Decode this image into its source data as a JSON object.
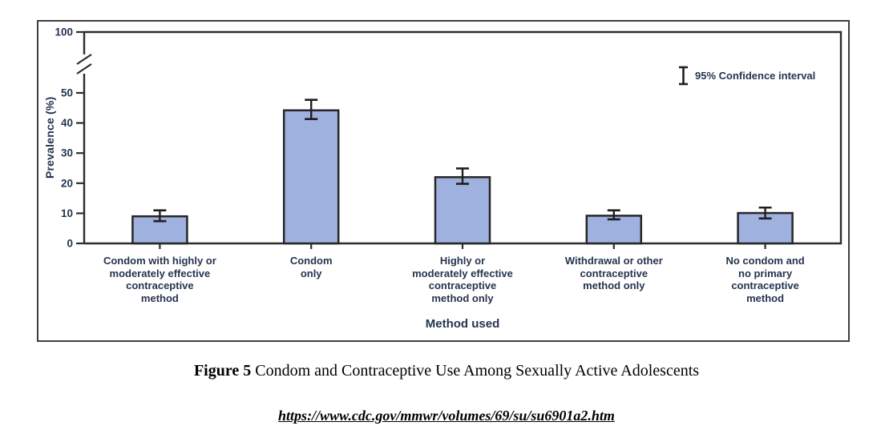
{
  "figure": {
    "caption_label": "Figure 5",
    "caption_text": "Condom and Contraceptive Use Among Sexually Active Adolescents",
    "source_url": "https://www.cdc.gov/mmwr/volumes/69/su/su6901a2.htm"
  },
  "chart_data": {
    "type": "bar",
    "title": "Figure 5 Condom and Contraceptive Use Among Sexually Active Adolescents",
    "xlabel": "Method used",
    "ylabel": "Prevalence (%)",
    "y_ticks": [
      0,
      10,
      20,
      30,
      40,
      50,
      100
    ],
    "ylim": [
      0,
      100
    ],
    "axis_break_between": [
      50,
      100
    ],
    "grid": false,
    "legend": {
      "label": "95% Confidence interval",
      "position": "top-right",
      "marker": "error-bar-icon"
    },
    "categories": [
      "Condom with highly or\nmoderately effective\ncontraceptive\nmethod",
      "Condom\nonly",
      "Highly or\nmoderately effective\ncontraceptive\nmethod only",
      "Withdrawal or other\ncontraceptive\nmethod only",
      "No condom and\nno primary\ncontraceptive\nmethod"
    ],
    "values": [
      9.0,
      44.2,
      22.0,
      9.2,
      10.1
    ],
    "ci_low": [
      7.4,
      41.3,
      19.8,
      8.0,
      8.3
    ],
    "ci_high": [
      11.0,
      47.7,
      24.9,
      11.0,
      11.9
    ],
    "colors": {
      "bar_fill": "#9fb1de",
      "bar_border": "#262626",
      "axis": "#2d2d2d",
      "error_bar": "#1f1f1f",
      "text": "#24344f"
    }
  }
}
